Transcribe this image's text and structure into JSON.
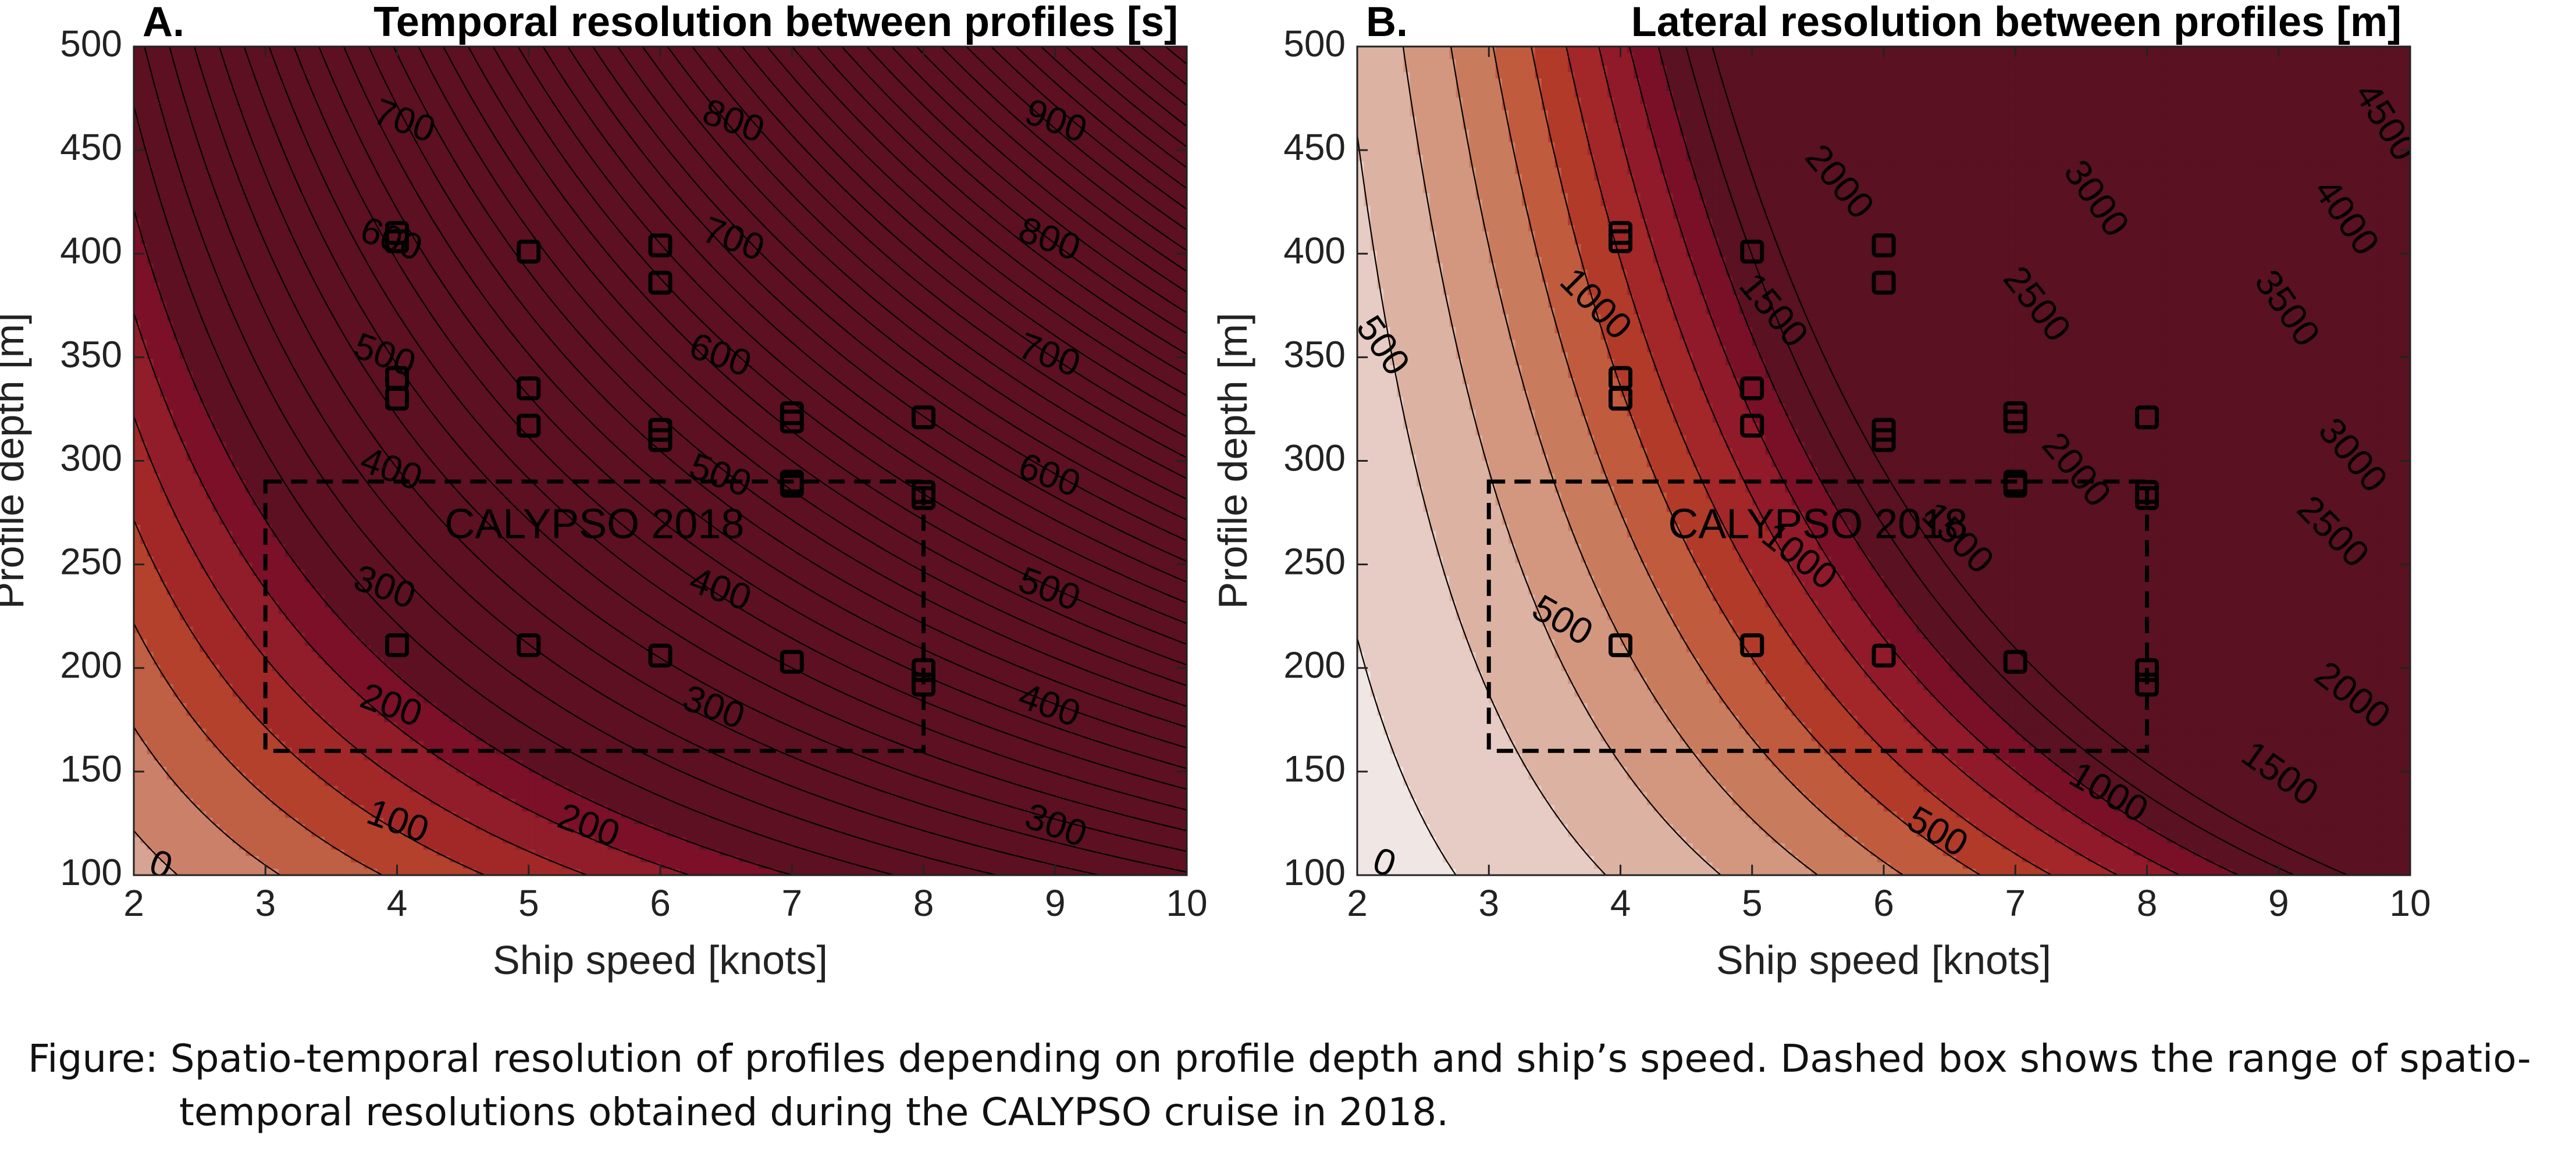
{
  "figure": {
    "caption": "Figure: Spatio-temporal resolution of profiles depending on profile depth and ship’s speed. Dashed box shows the range of spatio-temporal resolutions obtained during the CALYPSO cruise in 2018."
  },
  "colors": {
    "temporal_ramp": [
      "#f1e6e4",
      "#e2c3ba",
      "#d7a392",
      "#cb806a",
      "#bf5f44",
      "#b3412c",
      "#a22828",
      "#901d29",
      "#7b1028",
      "#5d1022"
    ],
    "lateral_ramp": [
      "#f0e7e5",
      "#e6ccc4",
      "#dcb2a3",
      "#d3977f",
      "#c97c5d",
      "#c05b3e",
      "#b23a28",
      "#a32629",
      "#901a2a",
      "#7a1028",
      "#5a1122"
    ],
    "contour_line": "#000000",
    "box_line": "#000000"
  },
  "chart_data": [
    {
      "type": "contour",
      "panel": "A.",
      "title": "Temporal resolution between profiles [s]",
      "xlabel": "Ship speed [knots]",
      "ylabel": "Profile depth [m]",
      "xlim": [
        2,
        10
      ],
      "ylim": [
        100,
        500
      ],
      "xticks": [
        2,
        3,
        4,
        5,
        6,
        7,
        8,
        9,
        10
      ],
      "yticks": [
        100,
        150,
        200,
        250,
        300,
        350,
        400,
        450,
        500
      ],
      "contour_levels": [
        0,
        100,
        200,
        300,
        400,
        500,
        600,
        700,
        800,
        900
      ],
      "contour_labels": [
        {
          "text": "0",
          "x": 2.2,
          "y": 104,
          "rot": 20
        },
        {
          "text": "100",
          "x": 4.0,
          "y": 125,
          "rot": 20
        },
        {
          "text": "200",
          "x": 5.45,
          "y": 123,
          "rot": 20
        },
        {
          "text": "300",
          "x": 9.0,
          "y": 123,
          "rot": 20
        },
        {
          "text": "200",
          "x": 3.95,
          "y": 181,
          "rot": 20
        },
        {
          "text": "300",
          "x": 6.4,
          "y": 180,
          "rot": 20
        },
        {
          "text": "400",
          "x": 8.95,
          "y": 181,
          "rot": 20
        },
        {
          "text": "300",
          "x": 3.9,
          "y": 238,
          "rot": 20
        },
        {
          "text": "400",
          "x": 6.45,
          "y": 237,
          "rot": 20
        },
        {
          "text": "500",
          "x": 8.95,
          "y": 237,
          "rot": 20
        },
        {
          "text": "400",
          "x": 3.95,
          "y": 295,
          "rot": 20
        },
        {
          "text": "500",
          "x": 6.45,
          "y": 292,
          "rot": 20
        },
        {
          "text": "600",
          "x": 8.95,
          "y": 292,
          "rot": 20
        },
        {
          "text": "500",
          "x": 3.9,
          "y": 350,
          "rot": 20
        },
        {
          "text": "600",
          "x": 6.45,
          "y": 350,
          "rot": 20
        },
        {
          "text": "700",
          "x": 8.95,
          "y": 350,
          "rot": 20
        },
        {
          "text": "600",
          "x": 3.95,
          "y": 406,
          "rot": 20
        },
        {
          "text": "700",
          "x": 6.55,
          "y": 406,
          "rot": 20
        },
        {
          "text": "800",
          "x": 8.95,
          "y": 406,
          "rot": 20
        },
        {
          "text": "700",
          "x": 4.05,
          "y": 463,
          "rot": 20
        },
        {
          "text": "800",
          "x": 6.55,
          "y": 463,
          "rot": 20
        },
        {
          "text": "900",
          "x": 9.0,
          "y": 463,
          "rot": 20
        }
      ],
      "markers": [
        {
          "x": 4,
          "y": 410
        },
        {
          "x": 4,
          "y": 406
        },
        {
          "x": 4,
          "y": 340
        },
        {
          "x": 4,
          "y": 330
        },
        {
          "x": 4,
          "y": 211
        },
        {
          "x": 5,
          "y": 401
        },
        {
          "x": 5,
          "y": 335
        },
        {
          "x": 5,
          "y": 317
        },
        {
          "x": 5,
          "y": 211
        },
        {
          "x": 6,
          "y": 404
        },
        {
          "x": 6,
          "y": 386
        },
        {
          "x": 6,
          "y": 315
        },
        {
          "x": 6,
          "y": 310
        },
        {
          "x": 6,
          "y": 206
        },
        {
          "x": 7,
          "y": 323
        },
        {
          "x": 7,
          "y": 319
        },
        {
          "x": 7,
          "y": 290
        },
        {
          "x": 7,
          "y": 288
        },
        {
          "x": 7,
          "y": 203
        },
        {
          "x": 8,
          "y": 321
        },
        {
          "x": 8,
          "y": 285
        },
        {
          "x": 8,
          "y": 282
        },
        {
          "x": 8,
          "y": 199
        },
        {
          "x": 8,
          "y": 192
        }
      ],
      "box": {
        "x0": 3,
        "x1": 8,
        "y0": 160,
        "y1": 290,
        "label": "CALYPSO 2018",
        "label_x": 5.5,
        "label_y": 268
      }
    },
    {
      "type": "contour",
      "panel": "B.",
      "title": "Lateral resolution between profiles [m]",
      "xlabel": "Ship speed [knots]",
      "ylabel": "Profile depth [m]",
      "xlim": [
        2,
        10
      ],
      "ylim": [
        100,
        500
      ],
      "xticks": [
        2,
        3,
        4,
        5,
        6,
        7,
        8,
        9,
        10
      ],
      "yticks": [
        100,
        150,
        200,
        250,
        300,
        350,
        400,
        450,
        500
      ],
      "contour_levels": [
        0,
        500,
        1000,
        1500,
        2000,
        2500,
        3000,
        3500,
        4000,
        4500
      ],
      "contour_labels": [
        {
          "text": "0",
          "x": 2.2,
          "y": 105,
          "rot": 20
        },
        {
          "text": "500",
          "x": 2.18,
          "y": 355,
          "rot": 55
        },
        {
          "text": "500",
          "x": 3.55,
          "y": 222,
          "rot": 30
        },
        {
          "text": "500",
          "x": 6.4,
          "y": 120,
          "rot": 30
        },
        {
          "text": "1000",
          "x": 3.8,
          "y": 375,
          "rot": 45
        },
        {
          "text": "1000",
          "x": 5.35,
          "y": 253,
          "rot": 38
        },
        {
          "text": "1000",
          "x": 7.7,
          "y": 139,
          "rot": 30
        },
        {
          "text": "1500",
          "x": 5.15,
          "y": 372,
          "rot": 50
        },
        {
          "text": "1500",
          "x": 6.55,
          "y": 262,
          "rot": 45
        },
        {
          "text": "1500",
          "x": 9.0,
          "y": 148,
          "rot": 35
        },
        {
          "text": "2000",
          "x": 5.65,
          "y": 434,
          "rot": 50
        },
        {
          "text": "2000",
          "x": 7.45,
          "y": 295,
          "rot": 50
        },
        {
          "text": "2000",
          "x": 9.55,
          "y": 186,
          "rot": 38
        },
        {
          "text": "2500",
          "x": 7.15,
          "y": 375,
          "rot": 52
        },
        {
          "text": "2500",
          "x": 9.4,
          "y": 265,
          "rot": 45
        },
        {
          "text": "3000",
          "x": 7.6,
          "y": 426,
          "rot": 55
        },
        {
          "text": "3000",
          "x": 9.55,
          "y": 302,
          "rot": 50
        },
        {
          "text": "3500",
          "x": 9.05,
          "y": 373,
          "rot": 55
        },
        {
          "text": "4000",
          "x": 9.5,
          "y": 417,
          "rot": 55
        },
        {
          "text": "4500",
          "x": 9.8,
          "y": 463,
          "rot": 58
        }
      ],
      "markers": [
        {
          "x": 4,
          "y": 410
        },
        {
          "x": 4,
          "y": 406
        },
        {
          "x": 4,
          "y": 340
        },
        {
          "x": 4,
          "y": 330
        },
        {
          "x": 4,
          "y": 211
        },
        {
          "x": 5,
          "y": 401
        },
        {
          "x": 5,
          "y": 335
        },
        {
          "x": 5,
          "y": 317
        },
        {
          "x": 5,
          "y": 211
        },
        {
          "x": 6,
          "y": 404
        },
        {
          "x": 6,
          "y": 386
        },
        {
          "x": 6,
          "y": 315
        },
        {
          "x": 6,
          "y": 310
        },
        {
          "x": 6,
          "y": 206
        },
        {
          "x": 7,
          "y": 323
        },
        {
          "x": 7,
          "y": 319
        },
        {
          "x": 7,
          "y": 290
        },
        {
          "x": 7,
          "y": 288
        },
        {
          "x": 7,
          "y": 203
        },
        {
          "x": 8,
          "y": 321
        },
        {
          "x": 8,
          "y": 285
        },
        {
          "x": 8,
          "y": 282
        },
        {
          "x": 8,
          "y": 199
        },
        {
          "x": 8,
          "y": 192
        }
      ],
      "box": {
        "x0": 3,
        "x1": 8,
        "y0": 160,
        "y1": 290,
        "label": "CALYPSO 2018",
        "label_x": 5.5,
        "label_y": 268
      }
    }
  ]
}
